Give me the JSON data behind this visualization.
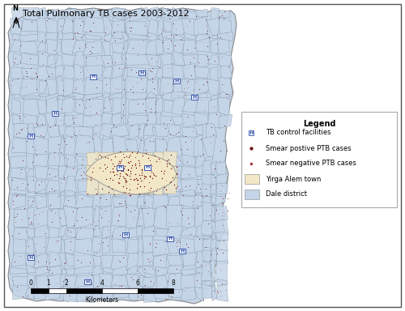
{
  "title": "Total Pulmonary TB cases 2003-2012",
  "title_fontsize": 8,
  "bg_color": "#ffffff",
  "dale_color": "#c5d5e8",
  "dale_edge": "#888888",
  "yirga_color": "#f2e8c8",
  "yirga_edge": "#999999",
  "smear_pos_color": "#6b0000",
  "smear_neg_color": "#aa3333",
  "facility_color": "#3355aa",
  "legend_title": "Legend",
  "legend_items": [
    {
      "label": "TB control facilities"
    },
    {
      "label": "Smear postive PTB cases"
    },
    {
      "label": "Smear negative PTB cases"
    },
    {
      "label": "Yirga Alem town"
    },
    {
      "label": "Dale district"
    }
  ],
  "scalebar_ticks": [
    0,
    1,
    2,
    4,
    6,
    8
  ],
  "scalebar_label": "Kilometers",
  "seed": 42
}
